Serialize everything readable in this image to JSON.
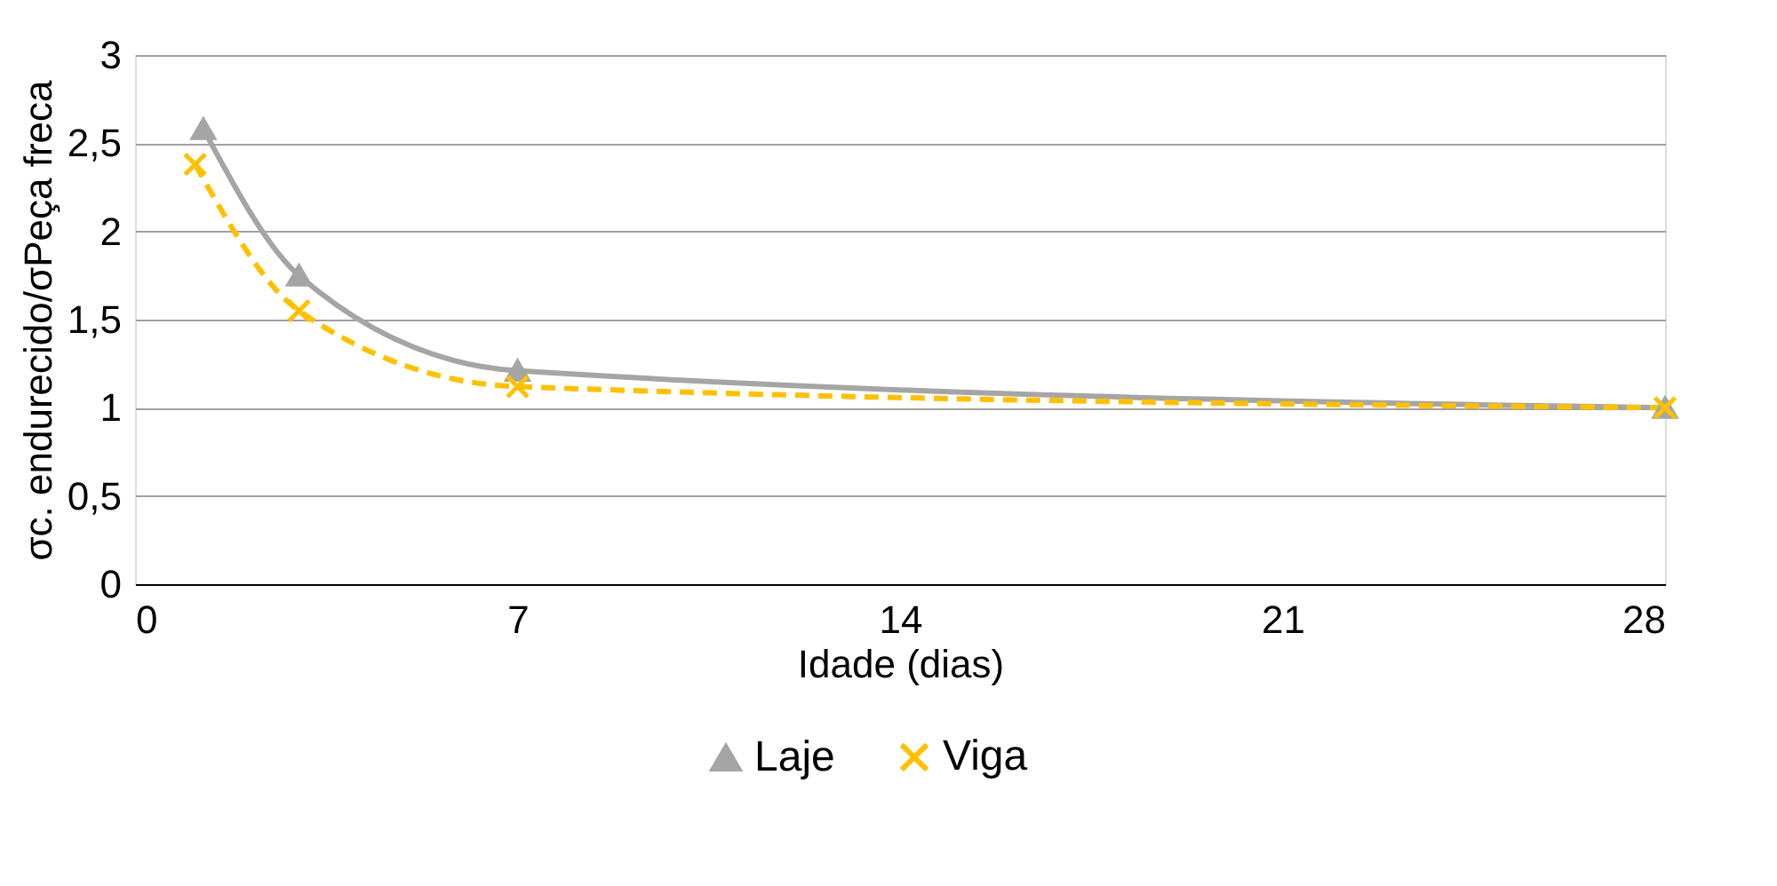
{
  "chart_data": {
    "type": "line",
    "xlabel": "Idade (dias)",
    "ylabel": "σc. endurecido/σPeça freca",
    "series": [
      {
        "name": "Laje",
        "color": "#a5a5a5",
        "marker": "triangle",
        "line_style": "solid",
        "x": [
          1.25,
          3,
          7,
          28
        ],
        "values": [
          2.58,
          1.75,
          1.21,
          1.0
        ]
      },
      {
        "name": "Viga",
        "color": "#ffc000",
        "marker": "cross",
        "line_style": "dashed",
        "x": [
          1.1,
          3,
          7,
          28
        ],
        "values": [
          2.38,
          1.55,
          1.12,
          1.0
        ]
      }
    ],
    "xlim": [
      0,
      28
    ],
    "xticks": [
      0,
      7,
      14,
      21,
      28
    ],
    "ylim": [
      0,
      3
    ],
    "yticks": [
      0,
      {
        "value": 0.5,
        "label": "0,5"
      },
      1,
      {
        "value": 1.5,
        "label": "1,5"
      },
      2,
      {
        "value": 2.5,
        "label": "2,5"
      },
      3
    ],
    "grid": "y",
    "legend": "bottom"
  }
}
